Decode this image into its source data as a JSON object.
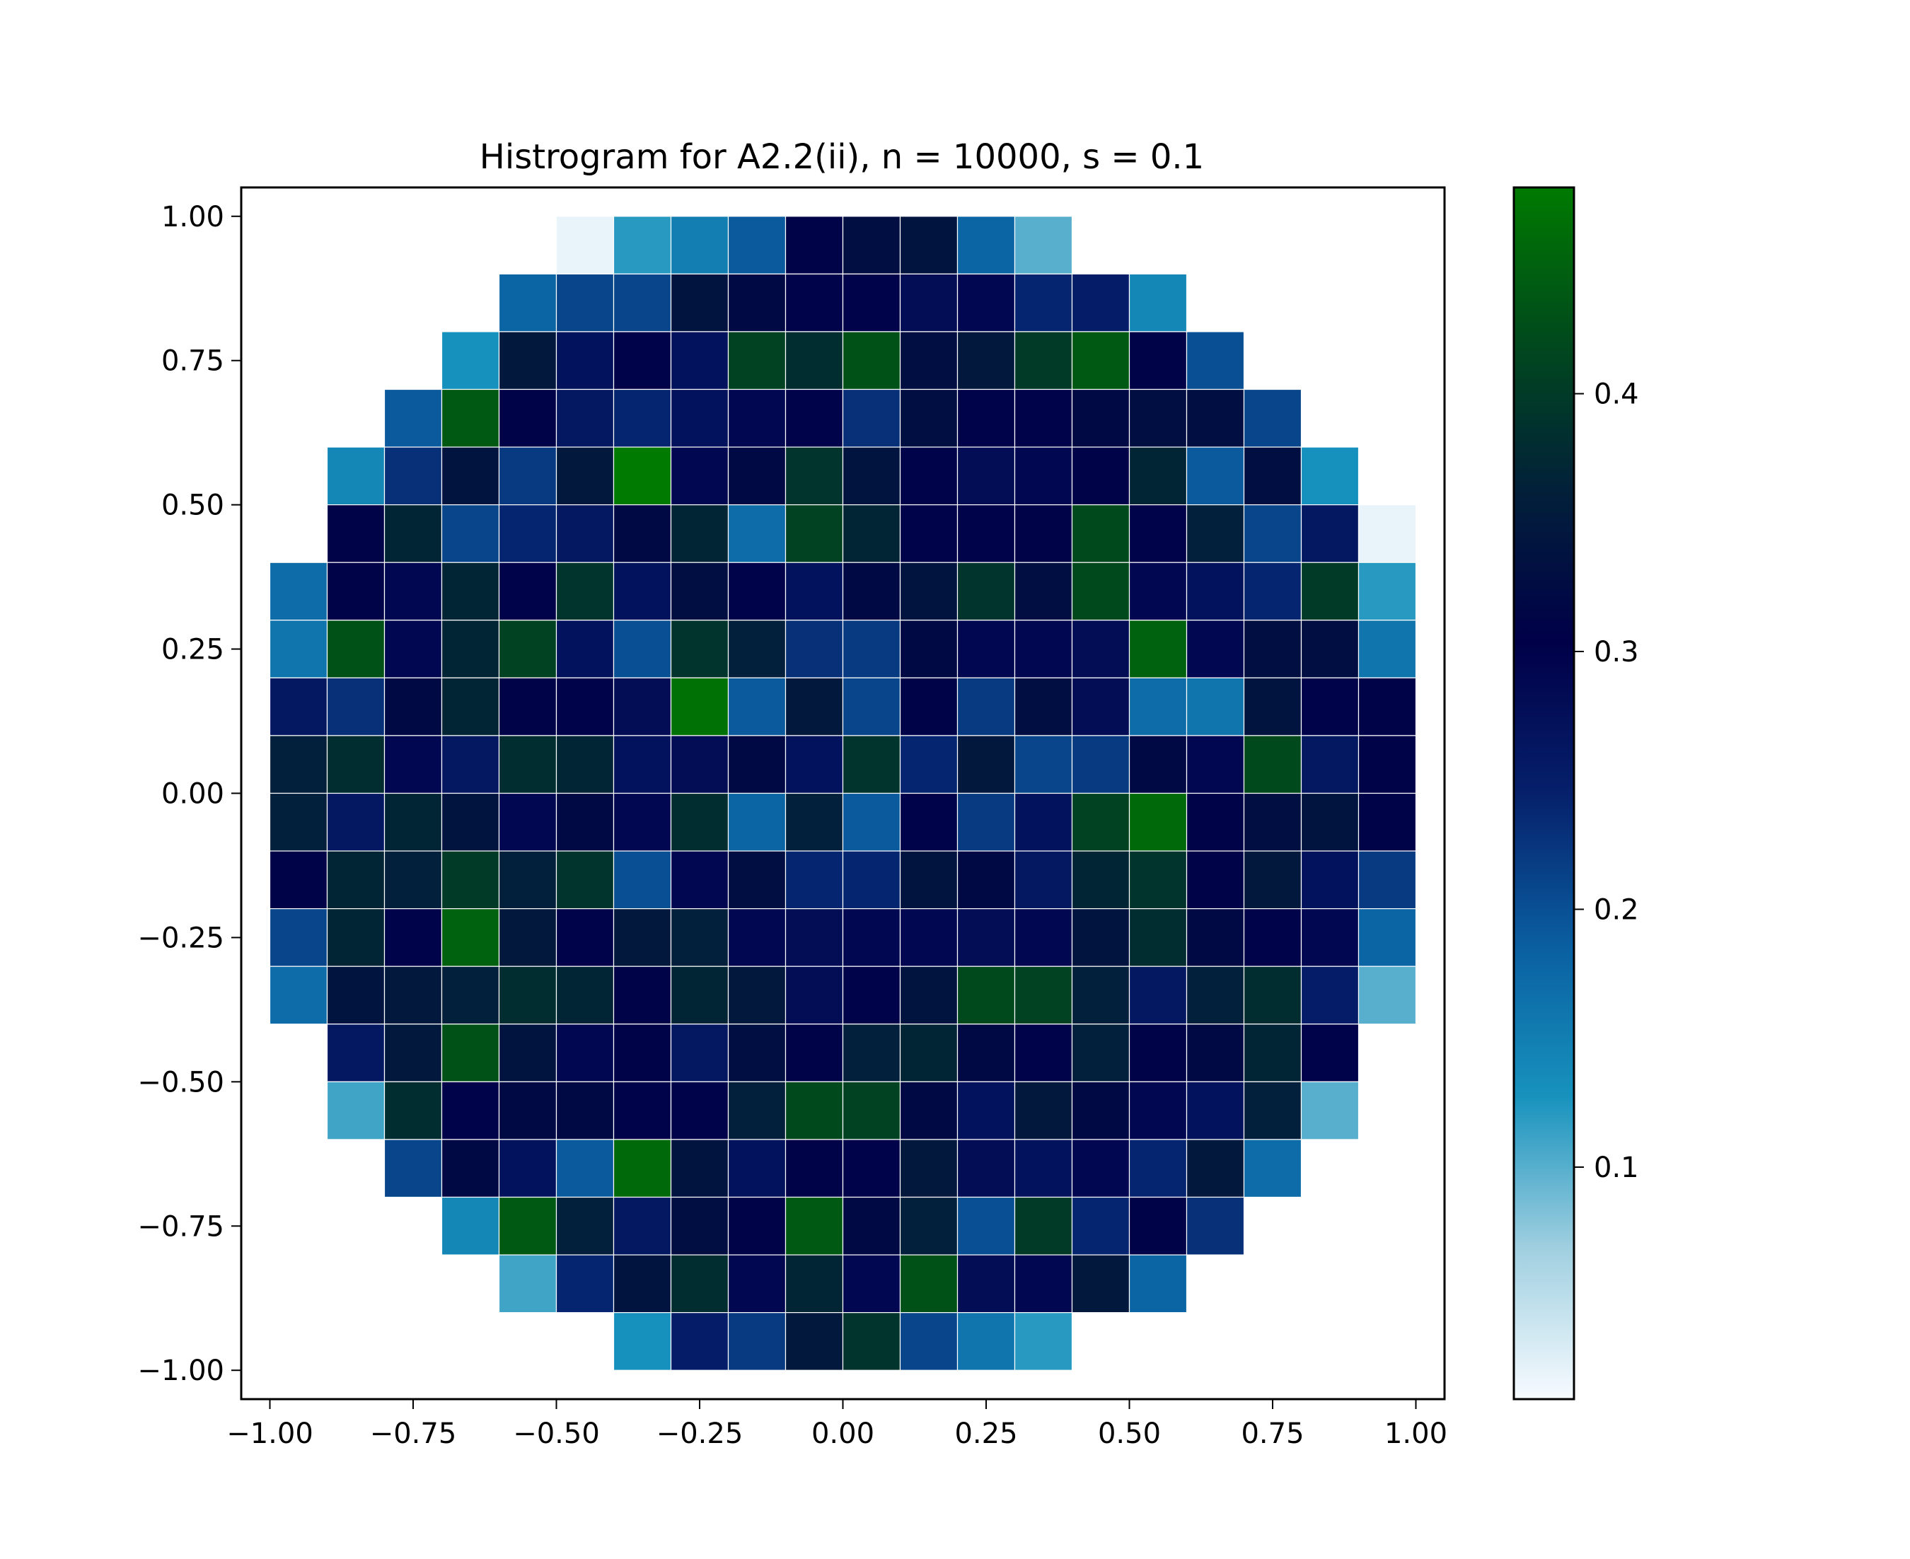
{
  "chart_data": {
    "type": "heatmap",
    "title": "Histrogram for A2.2(ii),  n = 10000, s = 0.1",
    "xlabel": "",
    "ylabel": "",
    "xlim": [
      -1.05,
      1.05
    ],
    "ylim": [
      -1.05,
      1.05
    ],
    "x_ticks": [
      "−1.00",
      "−0.75",
      "−0.50",
      "−0.25",
      "0.00",
      "0.25",
      "0.50",
      "0.75",
      "1.00"
    ],
    "y_ticks": [
      "−1.00",
      "−0.75",
      "−0.50",
      "−0.25",
      "0.00",
      "0.25",
      "0.50",
      "0.75",
      "1.00"
    ],
    "bin_width": 0.1,
    "x_bin_edges_start": -1.0,
    "y_bin_edges_start": -1.0,
    "colorbar": {
      "range": [
        0.01,
        0.48
      ],
      "ticks": [
        "0.1",
        "0.2",
        "0.3",
        "0.4"
      ],
      "colormap": [
        "#f7fbff",
        "#9fcfe0",
        "#1792bd",
        "#0a5ea0",
        "#06206b",
        "#000048",
        "#02203a",
        "#004a1c",
        "#007a00"
      ]
    },
    "rows_top_to_bottom": [
      [
        null,
        null,
        null,
        null,
        null,
        0.02,
        0.12,
        0.15,
        0.19,
        0.31,
        0.33,
        0.34,
        0.18,
        0.1,
        null,
        null,
        null,
        null,
        null,
        null
      ],
      [
        null,
        null,
        null,
        null,
        0.18,
        0.21,
        0.21,
        0.34,
        0.32,
        0.3,
        0.3,
        0.28,
        0.29,
        0.24,
        0.25,
        0.14,
        null,
        null,
        null,
        null
      ],
      [
        null,
        null,
        null,
        0.13,
        0.35,
        0.27,
        0.3,
        0.27,
        0.41,
        0.38,
        0.43,
        0.33,
        0.35,
        0.4,
        0.44,
        0.31,
        0.2,
        null,
        null,
        null
      ],
      [
        null,
        null,
        0.19,
        0.44,
        0.31,
        0.26,
        0.24,
        0.27,
        0.29,
        0.3,
        0.23,
        0.33,
        0.3,
        0.3,
        0.32,
        0.33,
        0.33,
        0.21,
        null,
        null
      ],
      [
        null,
        0.14,
        0.23,
        0.34,
        0.22,
        0.35,
        0.48,
        0.29,
        0.32,
        0.39,
        0.34,
        0.3,
        0.28,
        0.29,
        0.31,
        0.37,
        0.19,
        0.33,
        0.13,
        null
      ],
      [
        null,
        0.31,
        0.37,
        0.21,
        0.24,
        0.26,
        0.32,
        0.37,
        0.17,
        0.41,
        0.37,
        0.3,
        0.3,
        0.31,
        0.42,
        0.3,
        0.36,
        0.21,
        0.26,
        0.02
      ],
      [
        0.17,
        0.31,
        0.29,
        0.37,
        0.3,
        0.39,
        0.27,
        0.33,
        0.3,
        0.27,
        0.32,
        0.34,
        0.39,
        0.33,
        0.42,
        0.29,
        0.27,
        0.24,
        0.4,
        0.12
      ],
      [
        0.16,
        0.43,
        0.29,
        0.37,
        0.41,
        0.27,
        0.2,
        0.39,
        0.36,
        0.23,
        0.22,
        0.32,
        0.29,
        0.29,
        0.28,
        0.45,
        0.29,
        0.33,
        0.33,
        0.16
      ],
      [
        0.26,
        0.23,
        0.32,
        0.37,
        0.31,
        0.3,
        0.28,
        0.47,
        0.19,
        0.35,
        0.21,
        0.31,
        0.22,
        0.33,
        0.28,
        0.17,
        0.16,
        0.34,
        0.3,
        0.31
      ],
      [
        0.36,
        0.38,
        0.29,
        0.26,
        0.38,
        0.37,
        0.27,
        0.28,
        0.32,
        0.27,
        0.39,
        0.24,
        0.35,
        0.21,
        0.22,
        0.32,
        0.29,
        0.42,
        0.26,
        0.31
      ],
      [
        0.36,
        0.26,
        0.37,
        0.34,
        0.29,
        0.32,
        0.29,
        0.38,
        0.18,
        0.36,
        0.19,
        0.3,
        0.22,
        0.27,
        0.41,
        0.46,
        0.31,
        0.33,
        0.34,
        0.31
      ],
      [
        0.31,
        0.37,
        0.36,
        0.4,
        0.36,
        0.39,
        0.2,
        0.29,
        0.33,
        0.24,
        0.24,
        0.34,
        0.32,
        0.26,
        0.37,
        0.39,
        0.31,
        0.35,
        0.27,
        0.22
      ],
      [
        0.21,
        0.37,
        0.3,
        0.45,
        0.35,
        0.3,
        0.35,
        0.36,
        0.29,
        0.28,
        0.29,
        0.29,
        0.28,
        0.29,
        0.34,
        0.38,
        0.32,
        0.3,
        0.29,
        0.18
      ],
      [
        0.17,
        0.34,
        0.35,
        0.36,
        0.38,
        0.37,
        0.31,
        0.37,
        0.35,
        0.28,
        0.3,
        0.34,
        0.42,
        0.41,
        0.36,
        0.26,
        0.36,
        0.38,
        0.25,
        0.1
      ],
      [
        null,
        0.26,
        0.35,
        0.43,
        0.34,
        0.29,
        0.31,
        0.26,
        0.33,
        0.31,
        0.36,
        0.37,
        0.32,
        0.3,
        0.36,
        0.31,
        0.32,
        0.37,
        0.3,
        null
      ],
      [
        null,
        0.11,
        0.38,
        0.3,
        0.32,
        0.32,
        0.3,
        0.3,
        0.36,
        0.42,
        0.41,
        0.32,
        0.27,
        0.35,
        0.32,
        0.29,
        0.27,
        0.36,
        0.1,
        null
      ],
      [
        null,
        null,
        0.21,
        0.32,
        0.27,
        0.19,
        0.46,
        0.34,
        0.27,
        0.31,
        0.3,
        0.35,
        0.28,
        0.27,
        0.29,
        0.24,
        0.35,
        0.17,
        null,
        null
      ],
      [
        null,
        null,
        null,
        0.14,
        0.44,
        0.36,
        0.26,
        0.33,
        0.31,
        0.44,
        0.32,
        0.36,
        0.2,
        0.4,
        0.24,
        0.31,
        0.23,
        null,
        null,
        null
      ],
      [
        null,
        null,
        null,
        null,
        0.11,
        0.24,
        0.34,
        0.38,
        0.29,
        0.37,
        0.29,
        0.43,
        0.28,
        0.29,
        0.35,
        0.18,
        null,
        null,
        null,
        null
      ],
      [
        null,
        null,
        null,
        null,
        null,
        null,
        0.13,
        0.25,
        0.22,
        0.35,
        0.39,
        0.21,
        0.16,
        0.12,
        null,
        null,
        null,
        null,
        null,
        null
      ]
    ]
  }
}
